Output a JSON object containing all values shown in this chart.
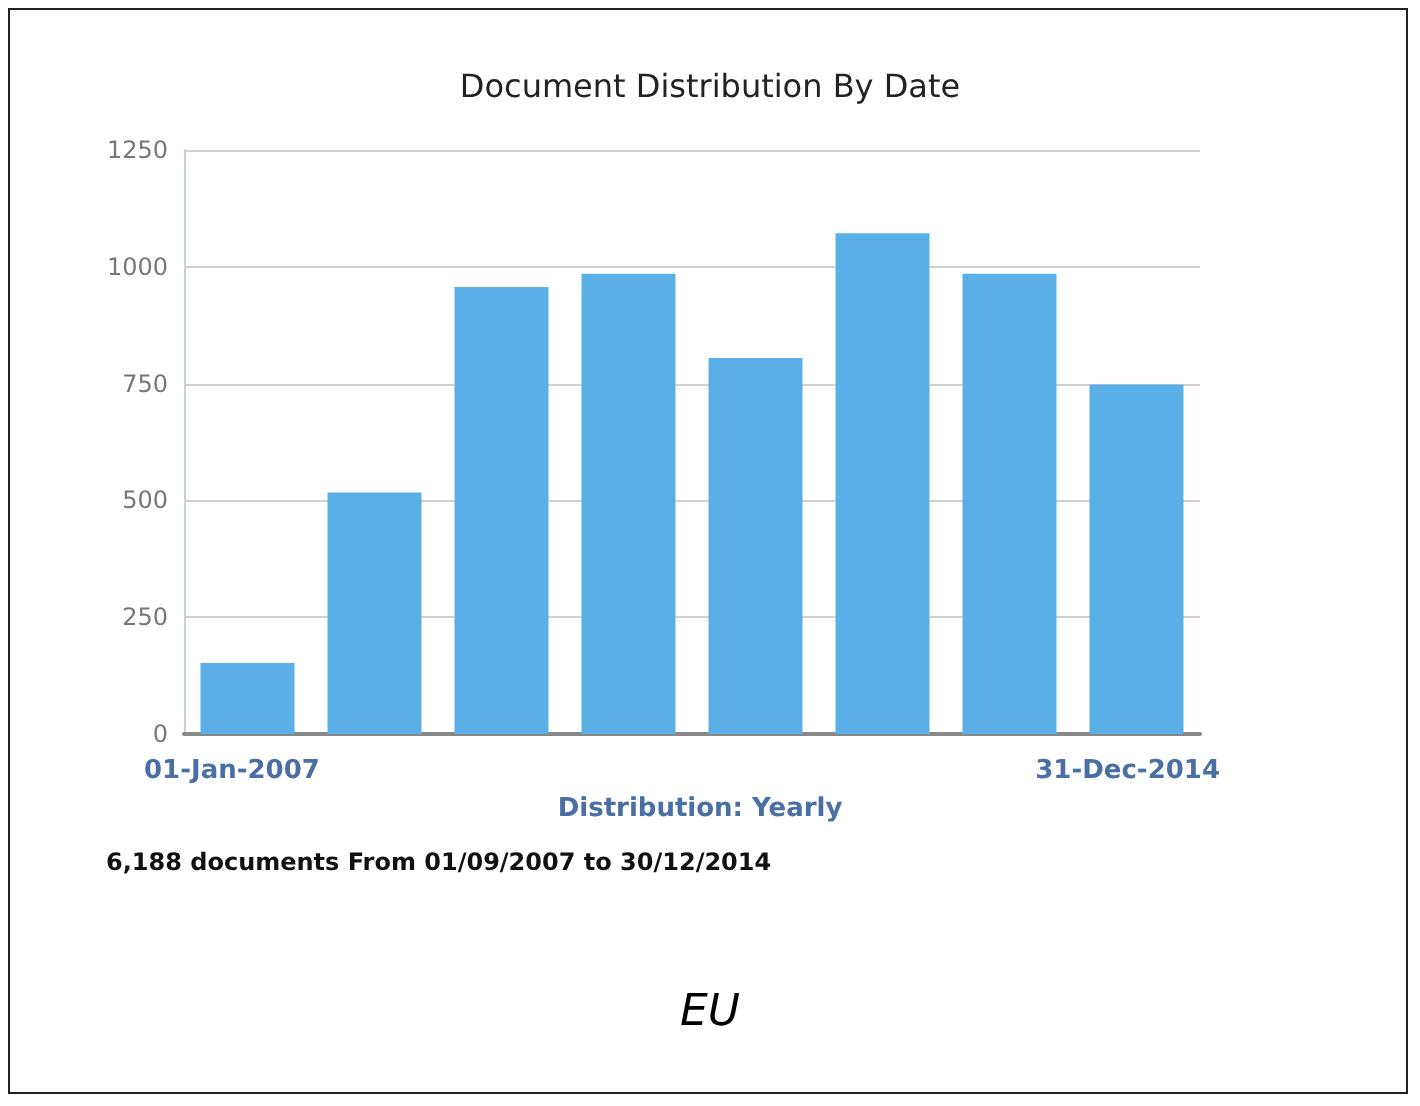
{
  "chart_data": {
    "type": "bar",
    "title": "Document Distribution By Date",
    "xlabel": "Distribution: Yearly",
    "categories": [
      null,
      null,
      null,
      null,
      null,
      null,
      null,
      null
    ],
    "values": [
      152,
      517,
      957,
      985,
      805,
      1072,
      985,
      748
    ],
    "color": "#5ab0e6",
    "ylim": [
      0,
      1250
    ],
    "yticks": [
      0,
      250,
      500,
      750,
      1000,
      1250
    ],
    "grid": "y",
    "annotations": [
      "01-Jan-2007",
      "31-Dec-2014",
      "6,188 documents From 01/09/2007 to 30/12/2014",
      "EU"
    ]
  }
}
